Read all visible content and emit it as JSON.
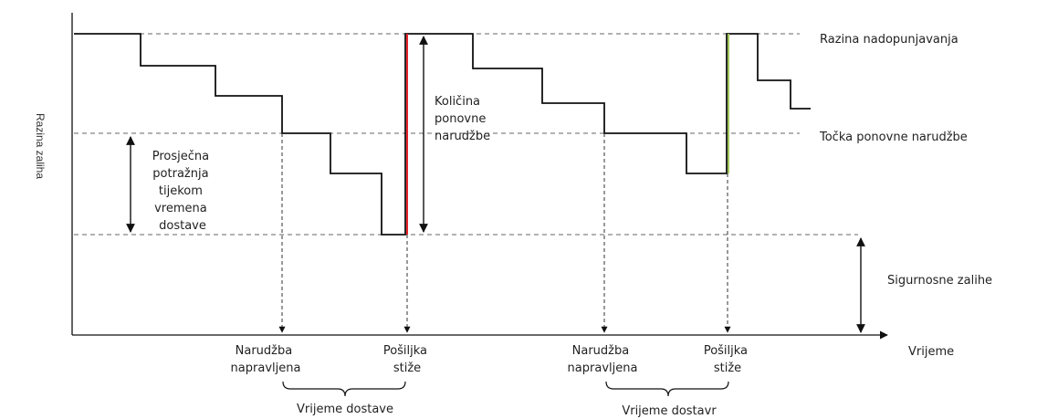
{
  "y_axis_label": "Razina zaliha",
  "x_axis_label": "Vrijeme",
  "right_labels": {
    "refill_level": "Razina nadopunjavanja",
    "reorder_point": "Točka ponovne narudžbe",
    "safety_stock": "Sigurnosne zalihe"
  },
  "avg_demand_label": [
    "Prosječna",
    "potražnja",
    "tijekom",
    "vremena",
    "dostave"
  ],
  "reorder_qty_label": [
    "Količina",
    "ponovne",
    "narudžbe"
  ],
  "cycle1": {
    "order_label": [
      "Narudžba",
      "napravljena"
    ],
    "arrival_label": [
      "Pošiljka",
      "stiže"
    ],
    "lead_time_label": "Vrijeme dostave"
  },
  "cycle2": {
    "order_label": [
      "Narudžba",
      "napravljena"
    ],
    "arrival_label": [
      "Pošiljka",
      "stiže"
    ],
    "lead_time_label": "Vrijeme dostavr"
  },
  "colors": {
    "line": "#111111",
    "dashed": "#666666",
    "replenish_1": "#e8242c",
    "replenish_2": "#a3c85a"
  }
}
